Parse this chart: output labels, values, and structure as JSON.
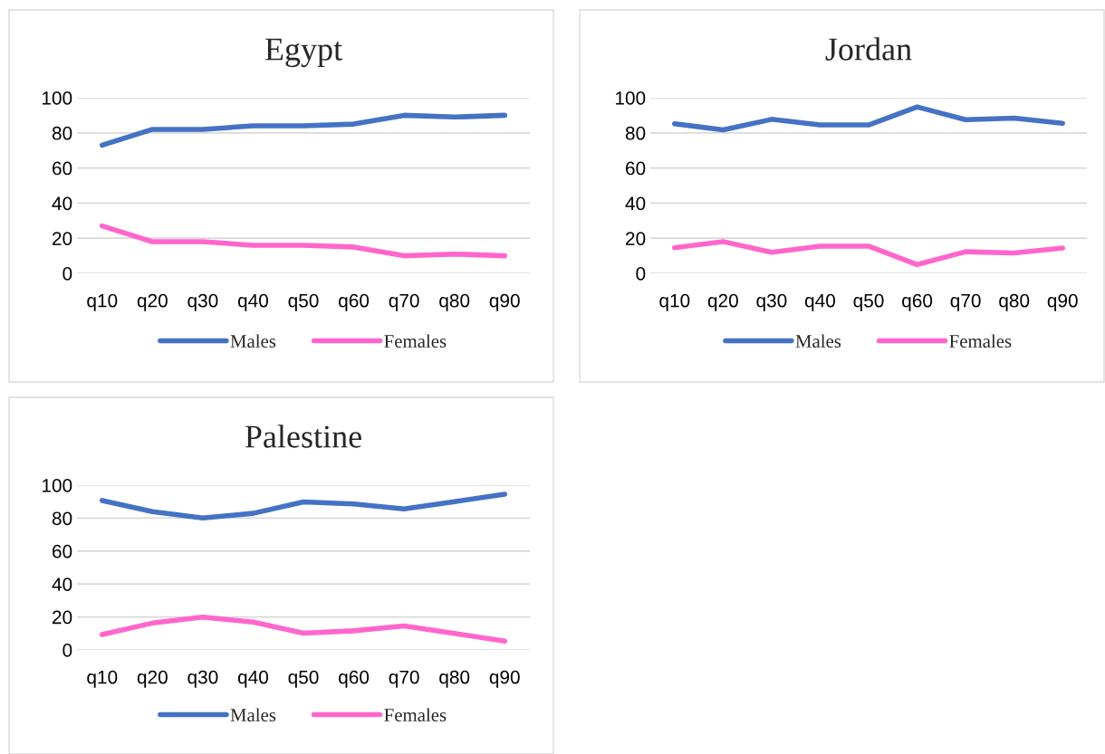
{
  "chart_data": [
    {
      "type": "line",
      "title": "Egypt",
      "categories": [
        "q10",
        "q20",
        "q30",
        "q40",
        "q50",
        "q60",
        "q70",
        "q80",
        "q90"
      ],
      "ylim": [
        0,
        100
      ],
      "yticks": [
        0,
        20,
        40,
        60,
        80,
        100
      ],
      "grid": "y",
      "legend": "bottom",
      "marker": "none",
      "line_style": "solid",
      "series": [
        {
          "name": "Males",
          "color": "#4472c4",
          "values": [
            73,
            82,
            82,
            84,
            84,
            85,
            90,
            89,
            90
          ]
        },
        {
          "name": "Females",
          "color": "#ff66cc",
          "values": [
            27,
            18,
            18,
            16,
            16,
            15,
            10,
            11,
            10
          ]
        }
      ]
    },
    {
      "type": "line",
      "title": "Jordan",
      "categories": [
        "q10",
        "q20",
        "q30",
        "q40",
        "q50",
        "q60",
        "q70",
        "q80",
        "q90"
      ],
      "ylim": [
        0,
        100
      ],
      "yticks": [
        0,
        20,
        40,
        60,
        80,
        100
      ],
      "grid": "y",
      "legend": "bottom",
      "marker": "none",
      "line_style": "solid",
      "series": [
        {
          "name": "Males",
          "color": "#4472c4",
          "values": [
            85.2,
            81.7,
            87.7,
            84.5,
            84.5,
            94.8,
            87.5,
            88.4,
            85.4
          ]
        },
        {
          "name": "Females",
          "color": "#ff66cc",
          "values": [
            14.6,
            18.1,
            12,
            15.5,
            15.5,
            5,
            12.3,
            11.6,
            14.4
          ]
        }
      ]
    },
    {
      "type": "line",
      "title": "Palestine",
      "categories": [
        "q10",
        "q20",
        "q30",
        "q40",
        "q50",
        "q60",
        "q70",
        "q80",
        "q90"
      ],
      "ylim": [
        0,
        100
      ],
      "yticks": [
        0,
        20,
        40,
        60,
        80,
        100
      ],
      "grid": "y",
      "legend": "bottom",
      "marker": "none",
      "line_style": "solid",
      "series": [
        {
          "name": "Males",
          "color": "#4472c4",
          "values": [
            90.7,
            83.9,
            80.1,
            82.9,
            89.8,
            88.6,
            85.6,
            90,
            94.5
          ]
        },
        {
          "name": "Females",
          "color": "#ff66cc",
          "values": [
            9.3,
            16.3,
            19.9,
            16.9,
            10.2,
            11.6,
            14.6,
            10,
            5.3
          ]
        }
      ]
    }
  ]
}
